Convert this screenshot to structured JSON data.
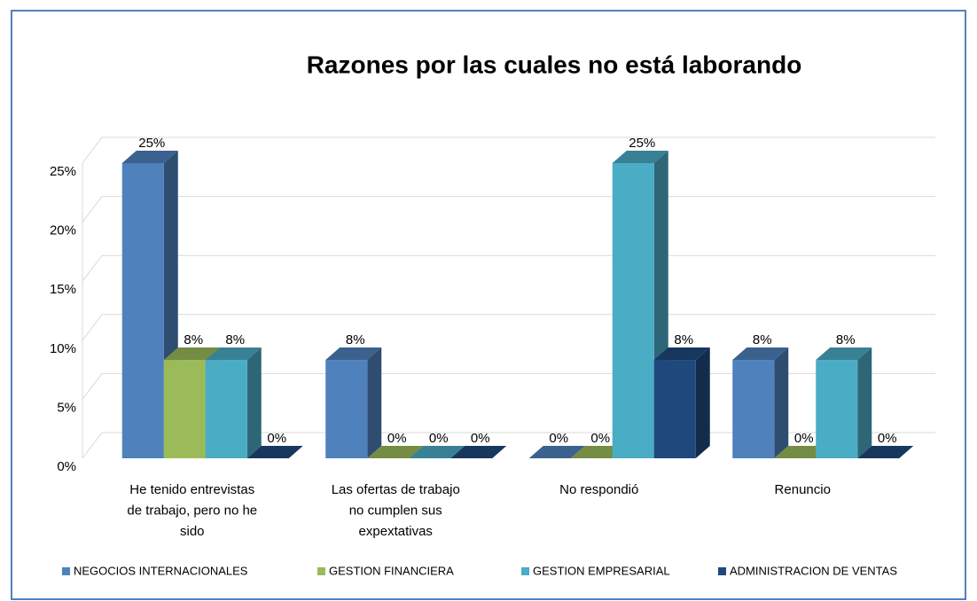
{
  "chart_data": {
    "type": "bar3d",
    "title": "Razones por las cuales no está laborando",
    "categories": [
      "He tenido entrevistas de trabajo, pero no he sido",
      "Las ofertas de trabajo no cumplen sus expextativas",
      "No respondió",
      "Renuncio"
    ],
    "series": [
      {
        "name": "NEGOCIOS INTERNACIONALES",
        "color": "#4f81bd",
        "values": [
          25,
          8.33,
          0,
          8.33
        ],
        "value_labels": [
          "25%",
          "8%",
          "0%",
          "8%"
        ]
      },
      {
        "name": "GESTION FINANCIERA",
        "color": "#9bbb59",
        "values": [
          8.33,
          0,
          0,
          0
        ],
        "value_labels": [
          "8%",
          "0%",
          "0%",
          "0%"
        ]
      },
      {
        "name": "GESTION EMPRESARIAL",
        "color": "#4bacc6",
        "values": [
          8.33,
          0,
          25,
          8.33
        ],
        "value_labels": [
          "8%",
          "0%",
          "25%",
          "8%"
        ]
      },
      {
        "name": "ADMINISTRACION DE VENTAS",
        "color": "#1f497d",
        "values": [
          0,
          0,
          8.33,
          0
        ],
        "value_labels": [
          "0%",
          "0%",
          "8%",
          "0%"
        ]
      }
    ],
    "ylim": [
      0,
      25
    ],
    "yticks": [
      {
        "value": 0,
        "label": "0%"
      },
      {
        "value": 5,
        "label": "5%"
      },
      {
        "value": 10,
        "label": "10%"
      },
      {
        "value": 15,
        "label": "15%"
      },
      {
        "value": 20,
        "label": "20%"
      },
      {
        "value": 25,
        "label": "25%"
      }
    ],
    "grid": true,
    "legend": "bottom"
  }
}
